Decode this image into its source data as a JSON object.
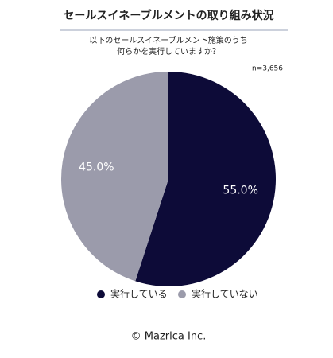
{
  "chart_data": {
    "type": "pie",
    "title": "セールスイネーブルメントの取り組み状況",
    "subtitle": [
      "以下のセールスイネーブルメント施策のうち",
      "何らかを実行していますか？"
    ],
    "note": "n=3,656",
    "categories": [
      "実行している",
      "実行していない"
    ],
    "values": [
      55,
      45
    ],
    "value_labels": [
      "55.0%",
      "45.0%"
    ],
    "colors": [
      "#0d0b38",
      "#9b9bab"
    ],
    "legend": "bottom",
    "footer": "© Mazrica Inc."
  }
}
